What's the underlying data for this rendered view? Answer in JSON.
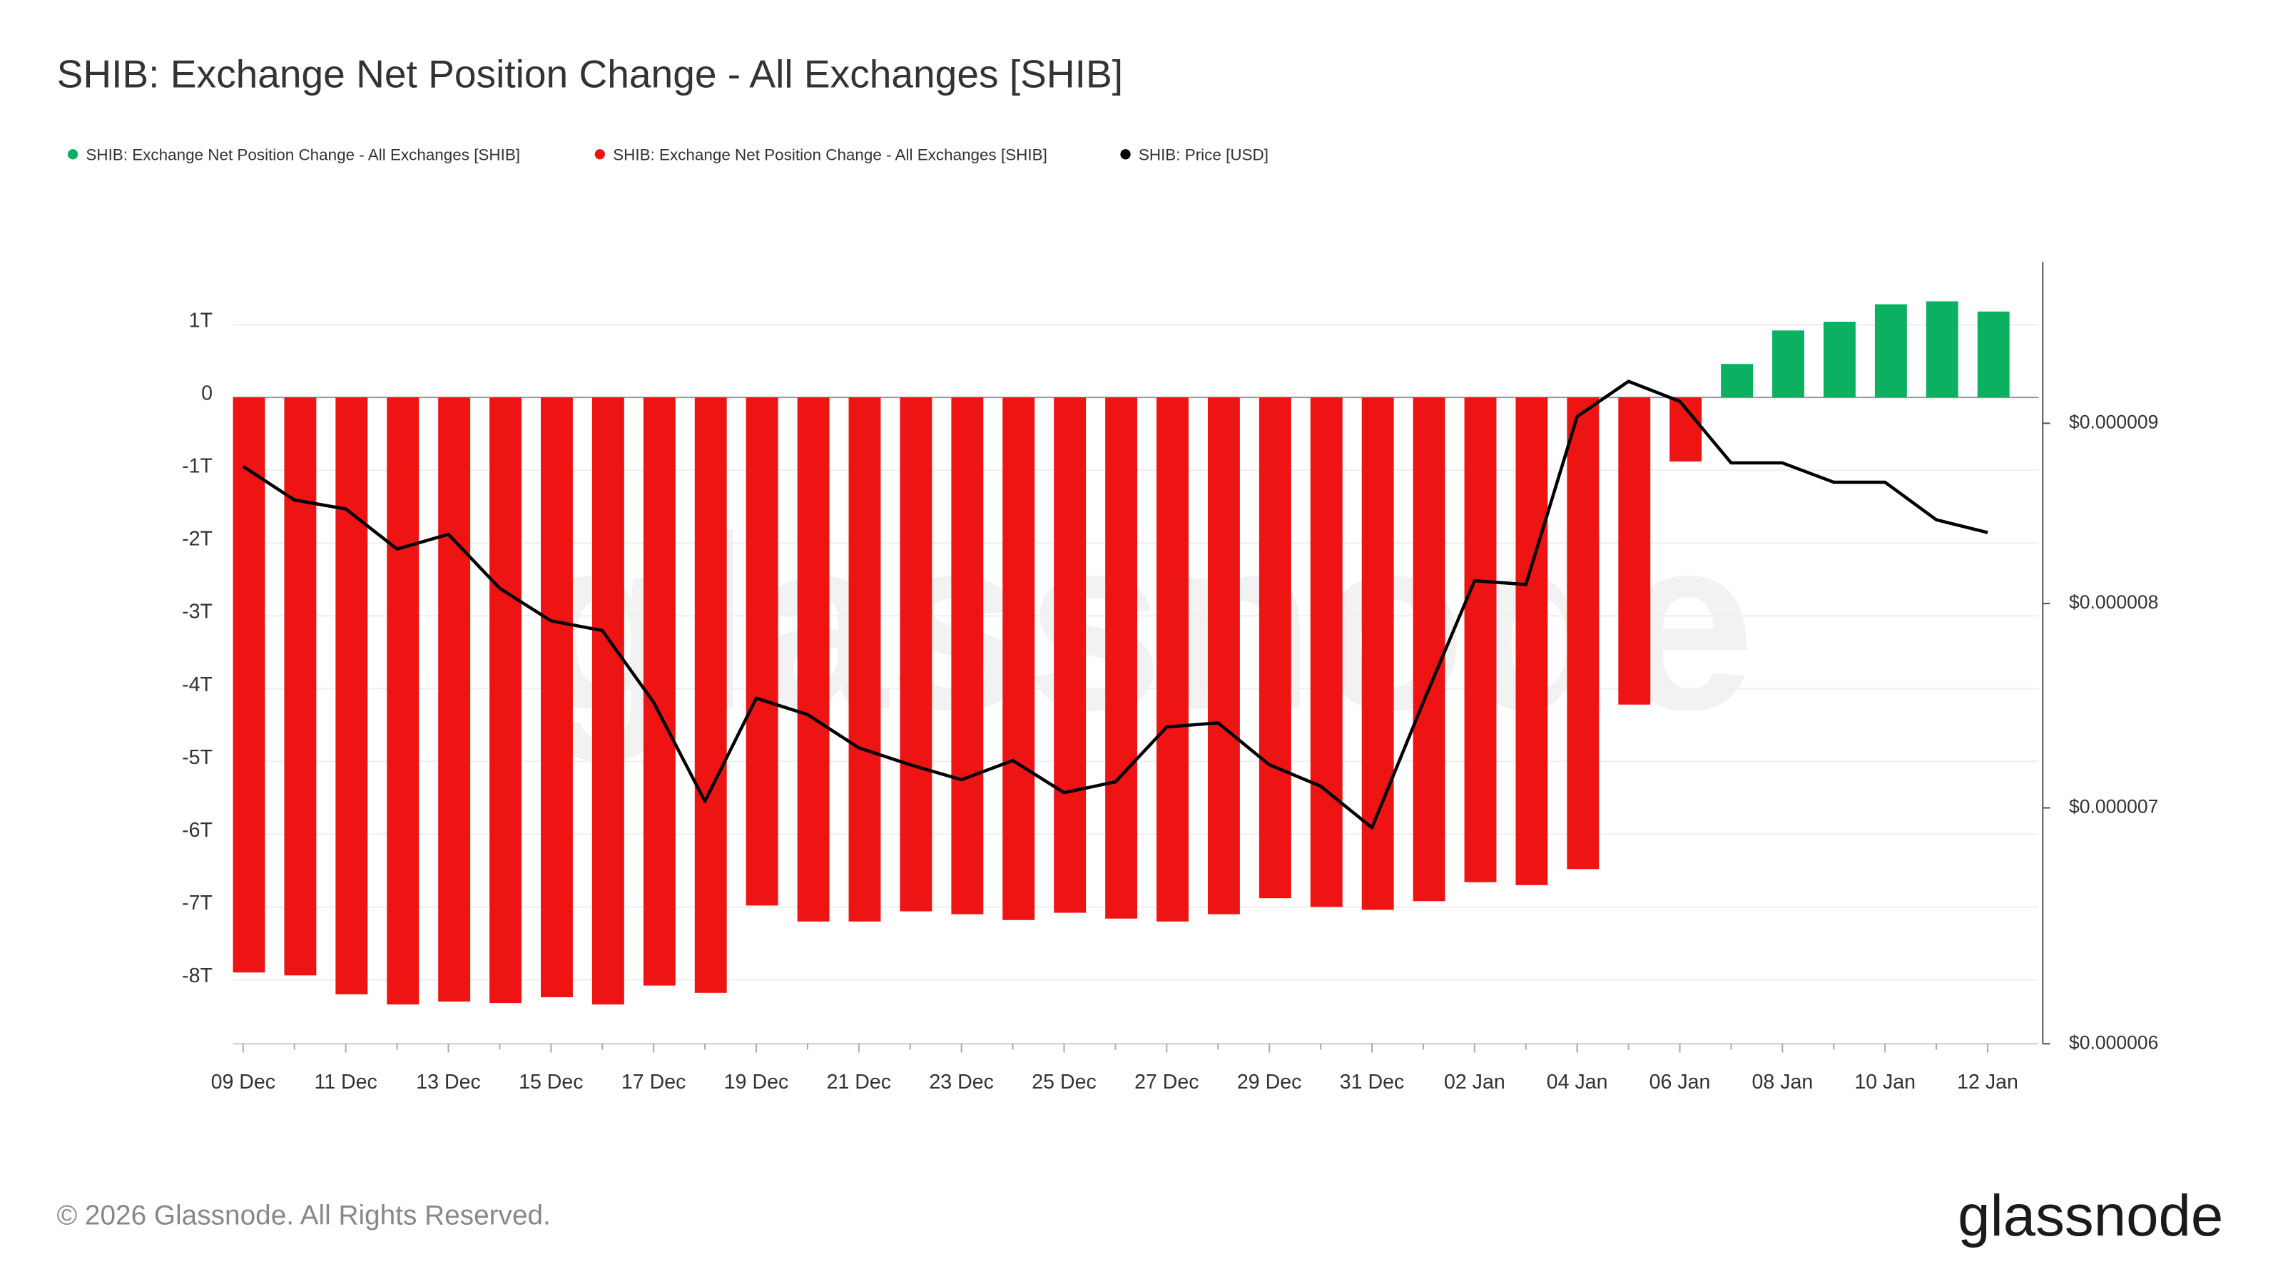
{
  "chart_data": {
    "type": "bar",
    "title": "SHIB: Exchange Net Position Change - All Exchanges [SHIB]",
    "categories": [
      "09 Dec",
      null,
      "11 Dec",
      null,
      "13 Dec",
      null,
      "15 Dec",
      null,
      "17 Dec",
      null,
      "19 Dec",
      null,
      "21 Dec",
      null,
      "23 Dec",
      null,
      "25 Dec",
      null,
      "27 Dec",
      null,
      "29 Dec",
      null,
      "31 Dec",
      null,
      "02 Jan",
      null,
      "04 Jan",
      null,
      "06 Jan",
      null,
      "08 Jan",
      null,
      "10 Jan",
      null,
      "12 Jan"
    ],
    "series": [
      {
        "name": "SHIB: Exchange Net Position Change - All Exchanges [SHIB]",
        "color": "#0bb061",
        "values": [
          null,
          null,
          null,
          null,
          null,
          null,
          null,
          null,
          null,
          null,
          null,
          null,
          null,
          null,
          null,
          null,
          null,
          null,
          null,
          null,
          null,
          null,
          null,
          null,
          null,
          null,
          null,
          null,
          null,
          0.46,
          0.92,
          1.04,
          1.28,
          1.32,
          1.18
        ]
      },
      {
        "name": "SHIB: Exchange Net Position Change - All Exchanges [SHIB]",
        "color": "#ef1414",
        "values": [
          -7.9,
          -7.94,
          -8.2,
          -8.34,
          -8.3,
          -8.32,
          -8.24,
          -8.34,
          -8.08,
          -8.18,
          -6.98,
          -7.2,
          -7.2,
          -7.06,
          -7.1,
          -7.18,
          -7.08,
          -7.16,
          -7.2,
          -7.1,
          -6.88,
          -7.0,
          -7.04,
          -6.92,
          -6.66,
          -6.7,
          -6.48,
          -4.22,
          -0.88,
          null,
          null,
          null,
          null,
          null,
          null
        ]
      },
      {
        "name": "SHIB: Price [USD]",
        "color": "#000000",
        "type": "line",
        "axis": "y2",
        "values": [
          8.75e-06,
          8.56e-06,
          8.51e-06,
          8.29e-06,
          8.37e-06,
          8.08e-06,
          7.91e-06,
          7.86e-06,
          7.5e-06,
          7.03e-06,
          7.52e-06,
          7.44e-06,
          7.28e-06,
          7.2e-06,
          7.13e-06,
          7.22e-06,
          7.07e-06,
          7.12e-06,
          7.38e-06,
          7.4e-06,
          7.2e-06,
          7.1e-06,
          6.91e-06,
          7.5e-06,
          8.12e-06,
          8.1e-06,
          9.04e-06,
          9.25e-06,
          9.13e-06,
          8.77e-06,
          8.77e-06,
          8.66e-06,
          8.66e-06,
          8.45e-06,
          8.38e-06
        ]
      }
    ],
    "ylim": [
      -8.88,
      1.86
    ],
    "yticks": [
      {
        "value": 1,
        "label": "1T"
      },
      0,
      {
        "value": -1,
        "label": "-1T"
      },
      {
        "value": -2,
        "label": "-2T"
      },
      {
        "value": -3,
        "label": "-3T"
      },
      {
        "value": -4,
        "label": "-4T"
      },
      {
        "value": -5,
        "label": "-5T"
      },
      {
        "value": -6,
        "label": "-6T"
      },
      {
        "value": -7,
        "label": "-7T"
      },
      {
        "value": -8,
        "label": "-8T"
      }
    ],
    "y2lim": [
      6e-06,
      1e-05
    ],
    "y2ticks": [
      {
        "value": 9e-06,
        "label": "$0.000009"
      },
      {
        "value": 8e-06,
        "label": "$0.000008"
      },
      {
        "value": 7e-06,
        "label": "$0.000007"
      },
      {
        "value": 6e-06,
        "label": "$0.000006"
      }
    ],
    "y2_log": true,
    "grid": true,
    "watermark": "glassnode",
    "copyright": "© 2026 Glassnode. All Rights Reserved.",
    "logo": "glassnode"
  }
}
